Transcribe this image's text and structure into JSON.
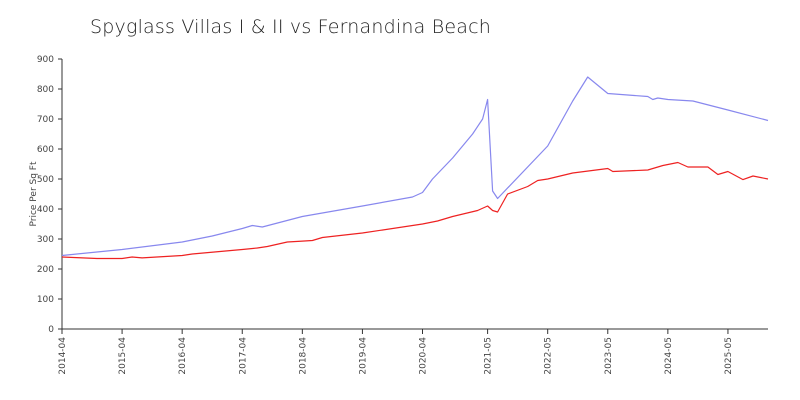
{
  "chart_data": {
    "type": "line",
    "title": "Spyglass Villas I & II vs Fernandina Beach",
    "ylabel": "Price Per Sq Ft",
    "xlabel": "",
    "ylim": [
      0,
      900
    ],
    "yticks": [
      0,
      100,
      200,
      300,
      400,
      500,
      600,
      700,
      800,
      900
    ],
    "xlim": [
      "2014-04",
      "2026-01"
    ],
    "xticks": [
      "2014-04",
      "2015-04",
      "2016-04",
      "2017-04",
      "2018-04",
      "2019-04",
      "2020-04",
      "2021-05",
      "2022-05",
      "2023-05",
      "2024-05",
      "2025-05"
    ],
    "colors": {
      "series_a": "#8888ee",
      "series_b": "#ee2222"
    },
    "series": [
      {
        "color": "#8888ee",
        "points": [
          [
            "2014-04",
            245
          ],
          [
            "2015-04",
            265
          ],
          [
            "2016-04",
            290
          ],
          [
            "2016-10",
            310
          ],
          [
            "2017-04",
            335
          ],
          [
            "2017-06",
            345
          ],
          [
            "2017-08",
            340
          ],
          [
            "2018-04",
            375
          ],
          [
            "2019-04",
            410
          ],
          [
            "2020-02",
            440
          ],
          [
            "2020-04",
            455
          ],
          [
            "2020-06",
            500
          ],
          [
            "2020-10",
            570
          ],
          [
            "2021-02",
            650
          ],
          [
            "2021-04",
            700
          ],
          [
            "2021-05",
            765
          ],
          [
            "2021-06",
            460
          ],
          [
            "2021-07",
            435
          ],
          [
            "2022-05",
            610
          ],
          [
            "2022-10",
            760
          ],
          [
            "2023-01",
            840
          ],
          [
            "2023-05",
            785
          ],
          [
            "2024-01",
            775
          ],
          [
            "2024-02",
            765
          ],
          [
            "2024-03",
            770
          ],
          [
            "2024-05",
            765
          ],
          [
            "2024-10",
            760
          ],
          [
            "2025-05",
            730
          ],
          [
            "2026-01",
            695
          ]
        ]
      },
      {
        "color": "#ee2222",
        "points": [
          [
            "2014-04",
            240
          ],
          [
            "2014-11",
            235
          ],
          [
            "2015-04",
            235
          ],
          [
            "2015-06",
            240
          ],
          [
            "2015-08",
            237
          ],
          [
            "2016-04",
            245
          ],
          [
            "2016-06",
            250
          ],
          [
            "2017-04",
            265
          ],
          [
            "2017-07",
            270
          ],
          [
            "2017-09",
            275
          ],
          [
            "2018-01",
            290
          ],
          [
            "2018-04",
            293
          ],
          [
            "2018-06",
            295
          ],
          [
            "2018-08",
            305
          ],
          [
            "2019-04",
            320
          ],
          [
            "2020-02",
            345
          ],
          [
            "2020-04",
            350
          ],
          [
            "2020-07",
            360
          ],
          [
            "2020-10",
            375
          ],
          [
            "2021-03",
            395
          ],
          [
            "2021-05",
            410
          ],
          [
            "2021-06",
            395
          ],
          [
            "2021-07",
            390
          ],
          [
            "2021-09",
            450
          ],
          [
            "2022-01",
            475
          ],
          [
            "2022-03",
            495
          ],
          [
            "2022-05",
            500
          ],
          [
            "2022-10",
            520
          ],
          [
            "2023-05",
            535
          ],
          [
            "2023-06",
            525
          ],
          [
            "2024-01",
            530
          ],
          [
            "2024-04",
            545
          ],
          [
            "2024-07",
            555
          ],
          [
            "2024-09",
            540
          ],
          [
            "2025-01",
            540
          ],
          [
            "2025-03",
            515
          ],
          [
            "2025-05",
            525
          ],
          [
            "2025-08",
            498
          ],
          [
            "2025-10",
            510
          ],
          [
            "2026-01",
            500
          ]
        ]
      }
    ]
  }
}
